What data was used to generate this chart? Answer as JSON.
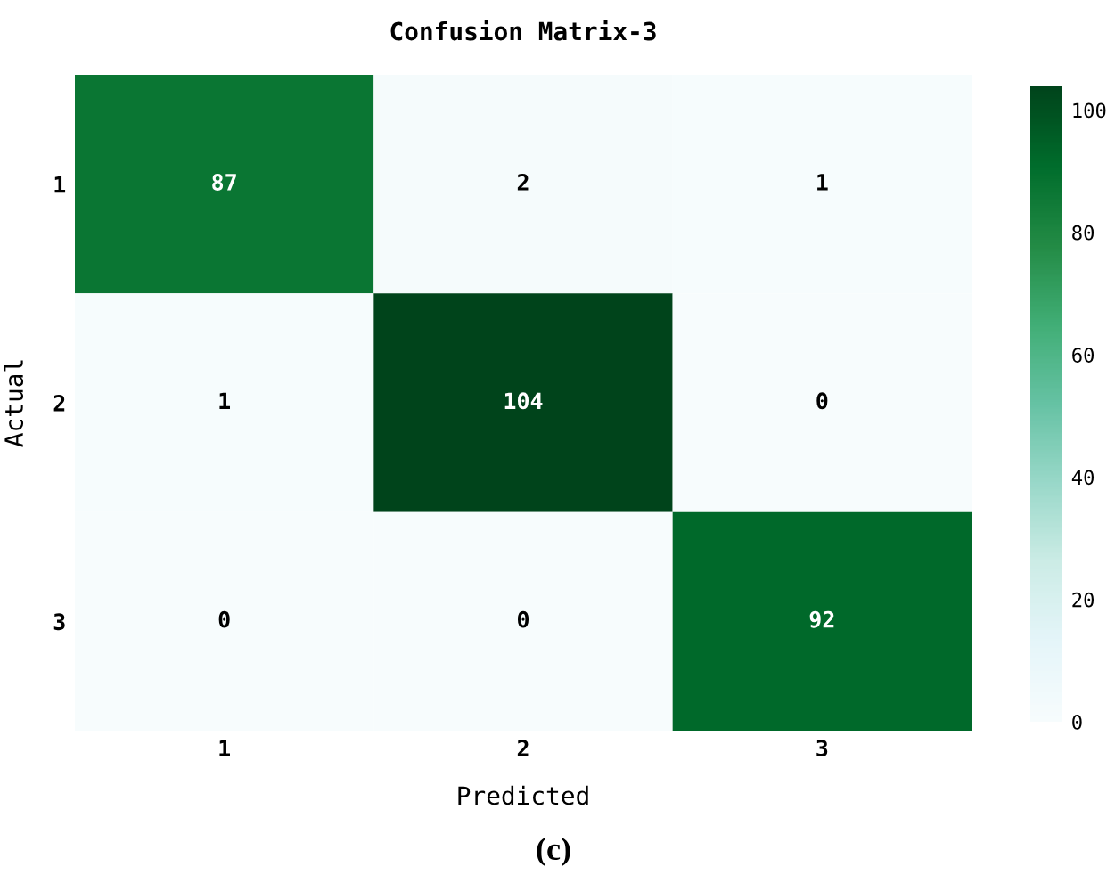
{
  "chart_data": {
    "type": "heatmap",
    "title": "Confusion Matrix-3",
    "xlabel": "Predicted",
    "ylabel": "Actual",
    "categories": [
      "1",
      "2",
      "3"
    ],
    "y_categories": [
      "1",
      "2",
      "3"
    ],
    "cells": [
      [
        87,
        2,
        1
      ],
      [
        1,
        104,
        0
      ],
      [
        0,
        0,
        92
      ]
    ],
    "clim": [
      0,
      104
    ],
    "cticks": [
      0,
      20,
      40,
      60,
      80,
      100
    ],
    "data_labels": true,
    "annotations": [
      "(c)"
    ]
  }
}
